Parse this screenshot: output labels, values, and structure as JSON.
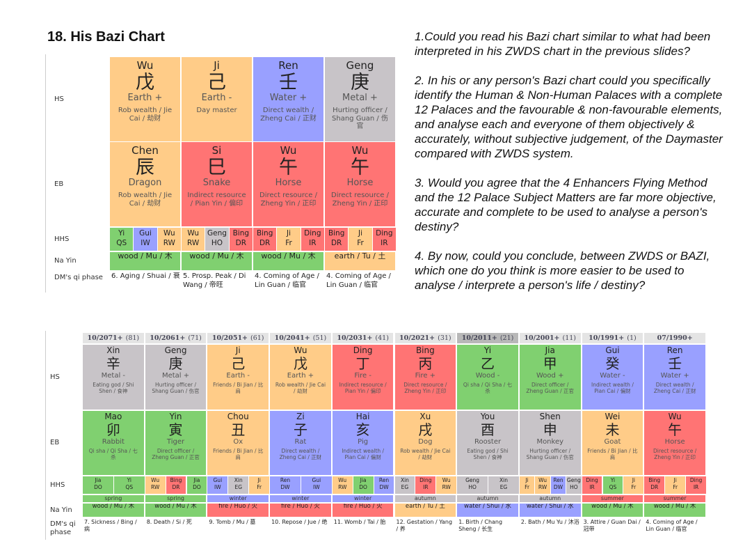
{
  "title": "18. His Bazi Chart",
  "questions": [
    "1.Could you read his Bazi chart similar to what had been interpreted in his ZWDS chart in the previous slides?",
    "2. In his or any person's Bazi chart could you specifically identify the Human & Non-Human Palaces with a complete 12 Palaces and the favourable & non-favourable elements, and analyse each and everyone of them objectively & accurately, without subjective judgement, of the Daymaster compared with ZWDS system.",
    "3. Would you agree that the 4 Enhancers Flying Method and the 12 Palace Subject Matters are far more objective, accurate and complete to be used to analyse a person's destiny?",
    "4. By now, could you conclude, between ZWDS or BAZI, which one do you think is more easier to be used to analyse / interprete a person's life / destiny?"
  ],
  "natal_chart": {
    "row_labels": [
      "HS",
      "EB",
      "HHS",
      "Na Yin",
      "DM's qi phase"
    ],
    "columns": [
      {
        "hs": {
          "pinyin": "Wu",
          "char": "戊",
          "element": "Earth +",
          "god": "Rob wealth / Jie Cai / 劫财",
          "color": "#ffcc88"
        },
        "eb": {
          "pinyin": "Chen",
          "char": "辰",
          "animal": "Dragon",
          "god": "Rob wealth / Jie Cai / 劫财",
          "color": "#ffcc88"
        },
        "hhs": [
          {
            "stem": "Yi",
            "god": "QS",
            "color": "#80d070"
          },
          {
            "stem": "Gui",
            "god": "IW",
            "color": "#99a0ff"
          },
          {
            "stem": "Wu",
            "god": "RW",
            "color": "#ffcc88"
          }
        ],
        "nayin": {
          "text": "wood / Mu / 木",
          "color": "#80d070"
        },
        "phase": "6. Aging / Shuai / 衰"
      },
      {
        "hs": {
          "pinyin": "Ji",
          "char": "己",
          "element": "Earth -",
          "god": "Day master",
          "color": "#ffcc88"
        },
        "eb": {
          "pinyin": "Si",
          "char": "巳",
          "animal": "Snake",
          "god": "Indirect resource / Pian Yin / 偏印",
          "color": "#ff7474"
        },
        "hhs": [
          {
            "stem": "Wu",
            "god": "RW",
            "color": "#ffcc88"
          },
          {
            "stem": "Geng",
            "god": "HO",
            "color": "#c8c4c8"
          },
          {
            "stem": "Bing",
            "god": "DR",
            "color": "#ff7474"
          }
        ],
        "nayin": {
          "text": "wood / Mu / 木",
          "color": "#80d070"
        },
        "phase": "5. Prosp. Peak / Di Wang / 帝旺"
      },
      {
        "hs": {
          "pinyin": "Ren",
          "char": "壬",
          "element": "Water +",
          "god": "Direct wealth / Zheng Cai / 正财",
          "color": "#99a0ff"
        },
        "eb": {
          "pinyin": "Wu",
          "char": "午",
          "animal": "Horse",
          "god": "Direct resource / Zheng Yin / 正印",
          "color": "#ff7474"
        },
        "hhs": [
          {
            "stem": "Bing",
            "god": "DR",
            "color": "#ff7474"
          },
          {
            "stem": "Ji",
            "god": "Fr",
            "color": "#ffcc88"
          },
          {
            "stem": "Ding",
            "god": "IR",
            "color": "#ff7474"
          }
        ],
        "nayin": {
          "text": "wood / Mu / 木",
          "color": "#80d070"
        },
        "phase": "4. Coming of Age / Lin Guan / 临官"
      },
      {
        "hs": {
          "pinyin": "Geng",
          "char": "庚",
          "element": "Metal +",
          "god": "Hurting officer / Shang Guan / 伤官",
          "color": "#c8c4c8"
        },
        "eb": {
          "pinyin": "Wu",
          "char": "午",
          "animal": "Horse",
          "god": "Direct resource / Zheng Yin / 正印",
          "color": "#ff7474"
        },
        "hhs": [
          {
            "stem": "Bing",
            "god": "DR",
            "color": "#ff7474"
          },
          {
            "stem": "Ji",
            "god": "Fr",
            "color": "#ffcc88"
          },
          {
            "stem": "Ding",
            "god": "IR",
            "color": "#ff7474"
          }
        ],
        "nayin": {
          "text": "earth / Tu / 土",
          "color": "#ffcc88"
        },
        "phase": "4. Coming of Age / Lin Guan / 临官"
      }
    ]
  },
  "luck_pillars": {
    "row_labels": [
      "HS",
      "EB",
      "HHS",
      "Na Yin",
      "DM's qi phase"
    ],
    "columns": [
      {
        "period": "10/2071+",
        "age": "(81)",
        "header_color": "#e4e4e4",
        "hs": {
          "pinyin": "Xin",
          "char": "辛",
          "element": "Metal -",
          "god": "Eating god / Shi Shen / 食神",
          "color": "#c8c4c8"
        },
        "eb": {
          "pinyin": "Mao",
          "char": "卯",
          "animal": "Rabbit",
          "god": "Qi sha / Qi Sha / 七杀",
          "color": "#80d070"
        },
        "hhs": [
          {
            "stem": "Jia",
            "god": "DO",
            "color": "#80d070"
          },
          {
            "stem": "Yi",
            "god": "QS",
            "color": "#80d070"
          }
        ],
        "season": {
          "text": "spring",
          "color": "#80d070"
        },
        "nayin": {
          "text": "wood / Mu / 木",
          "color": "#80d070"
        },
        "phase": "7. Sickness / Bing / 病"
      },
      {
        "period": "10/2061+",
        "age": "(71)",
        "header_color": "#e4e4e4",
        "hs": {
          "pinyin": "Geng",
          "char": "庚",
          "element": "Metal +",
          "god": "Hurting officer / Shang Guan / 伤官",
          "color": "#c8c4c8"
        },
        "eb": {
          "pinyin": "Yin",
          "char": "寅",
          "animal": "Tiger",
          "god": "Direct officer / Zheng Guan / 正官",
          "color": "#80d070"
        },
        "hhs": [
          {
            "stem": "Wu",
            "god": "RW",
            "color": "#ffcc88"
          },
          {
            "stem": "Bing",
            "god": "DR",
            "color": "#ff7474"
          },
          {
            "stem": "Jia",
            "god": "DO",
            "color": "#80d070"
          }
        ],
        "season": {
          "text": "spring",
          "color": "#80d070"
        },
        "nayin": {
          "text": "wood / Mu / 木",
          "color": "#80d070"
        },
        "phase": "8. Death / Si / 死"
      },
      {
        "period": "10/2051+",
        "age": "(61)",
        "header_color": "#e4e4e4",
        "hs": {
          "pinyin": "Ji",
          "char": "己",
          "element": "Earth -",
          "god": "Friends / Bi Jian / 比肩",
          "color": "#ffcc88"
        },
        "eb": {
          "pinyin": "Chou",
          "char": "丑",
          "animal": "Ox",
          "god": "Friends / Bi Jian / 比肩",
          "color": "#ffcc88"
        },
        "hhs": [
          {
            "stem": "Gui",
            "god": "IW",
            "color": "#99a0ff"
          },
          {
            "stem": "Xin",
            "god": "EG",
            "color": "#c8c4c8"
          },
          {
            "stem": "Ji",
            "god": "Fr",
            "color": "#ffcc88"
          }
        ],
        "season": {
          "text": "winter",
          "color": "#99a0ff"
        },
        "nayin": {
          "text": "fire / Huo / 火",
          "color": "#ff7474"
        },
        "phase": "9. Tomb / Mu / 墓"
      },
      {
        "period": "10/2041+",
        "age": "(51)",
        "header_color": "#e4e4e4",
        "hs": {
          "pinyin": "Wu",
          "char": "戊",
          "element": "Earth +",
          "god": "Rob wealth / Jie Cai / 劫财",
          "color": "#ffcc88"
        },
        "eb": {
          "pinyin": "Zi",
          "char": "子",
          "animal": "Rat",
          "god": "Direct wealth / Zheng Cai / 正财",
          "color": "#99a0ff"
        },
        "hhs": [
          {
            "stem": "Ren",
            "god": "DW",
            "color": "#99a0ff"
          },
          {
            "stem": "Gui",
            "god": "IW",
            "color": "#99a0ff"
          }
        ],
        "season": {
          "text": "winter",
          "color": "#99a0ff"
        },
        "nayin": {
          "text": "fire / Huo / 火",
          "color": "#ff7474"
        },
        "phase": "10. Repose / Jue / 绝"
      },
      {
        "period": "10/2031+",
        "age": "(41)",
        "header_color": "#e4e4e4",
        "hs": {
          "pinyin": "Ding",
          "char": "丁",
          "element": "Fire -",
          "god": "Indirect resource / Pian Yin / 偏印",
          "color": "#ff7474"
        },
        "eb": {
          "pinyin": "Hai",
          "char": "亥",
          "animal": "Pig",
          "god": "Indirect wealth / Pian Cai / 偏财",
          "color": "#99a0ff"
        },
        "hhs": [
          {
            "stem": "Wu",
            "god": "RW",
            "color": "#ffcc88"
          },
          {
            "stem": "Jia",
            "god": "DO",
            "color": "#80d070"
          },
          {
            "stem": "Ren",
            "god": "DW",
            "color": "#99a0ff"
          }
        ],
        "season": {
          "text": "winter",
          "color": "#99a0ff"
        },
        "nayin": {
          "text": "fire / Huo / 火",
          "color": "#ff7474"
        },
        "phase": "11. Womb / Tai / 胎"
      },
      {
        "period": "10/2021+",
        "age": "(31)",
        "header_color": "#e4e4e4",
        "hs": {
          "pinyin": "Bing",
          "char": "丙",
          "element": "Fire +",
          "god": "Direct resource / Zheng Yin / 正印",
          "color": "#ff7474"
        },
        "eb": {
          "pinyin": "Xu",
          "char": "戌",
          "animal": "Dog",
          "god": "Rob wealth / Jie Cai / 劫财",
          "color": "#ffcc88"
        },
        "hhs": [
          {
            "stem": "Xin",
            "god": "EG",
            "color": "#c8c4c8"
          },
          {
            "stem": "Ding",
            "god": "IR",
            "color": "#ff7474"
          },
          {
            "stem": "Wu",
            "god": "RW",
            "color": "#ffcc88"
          }
        ],
        "season": {
          "text": "autumn",
          "color": "#c8c4c8"
        },
        "nayin": {
          "text": "earth / Tu / 土",
          "color": "#ffcc88"
        },
        "phase": "12. Gestation / Yang / 养"
      },
      {
        "period": "10/2011+",
        "age": "(21)",
        "header_color": "#b8b8b8",
        "hs": {
          "pinyin": "Yi",
          "char": "乙",
          "element": "Wood -",
          "god": "Qi sha / Qi Sha / 七杀",
          "color": "#80d070"
        },
        "eb": {
          "pinyin": "You",
          "char": "酉",
          "animal": "Rooster",
          "god": "Eating god / Shi Shen / 食神",
          "color": "#c8c4c8"
        },
        "hhs": [
          {
            "stem": "Geng",
            "god": "HO",
            "color": "#c8c4c8"
          },
          {
            "stem": "Xin",
            "god": "EG",
            "color": "#c8c4c8"
          }
        ],
        "season": {
          "text": "autumn",
          "color": "#c8c4c8"
        },
        "nayin": {
          "text": "water / Shui / 水",
          "color": "#99a0ff"
        },
        "phase": "1. Birth / Chang Sheng / 长生"
      },
      {
        "period": "10/2001+",
        "age": "(11)",
        "header_color": "#e4e4e4",
        "hs": {
          "pinyin": "Jia",
          "char": "甲",
          "element": "Wood +",
          "god": "Direct officer / Zheng Guan / 正官",
          "color": "#80d070"
        },
        "eb": {
          "pinyin": "Shen",
          "char": "申",
          "animal": "Monkey",
          "god": "Hurting officer / Shang Guan / 伤官",
          "color": "#c8c4c8"
        },
        "hhs": [
          {
            "stem": "Ji",
            "god": "Fr",
            "color": "#ffcc88"
          },
          {
            "stem": "Wu",
            "god": "RW",
            "color": "#ffcc88"
          },
          {
            "stem": "Ren",
            "god": "DW",
            "color": "#99a0ff"
          },
          {
            "stem": "Geng",
            "god": "HO",
            "color": "#c8c4c8"
          }
        ],
        "season": {
          "text": "autumn",
          "color": "#c8c4c8"
        },
        "nayin": {
          "text": "water / Shui / 水",
          "color": "#99a0ff"
        },
        "phase": "2. Bath / Mu Yu / 沐浴"
      },
      {
        "period": "10/1991+",
        "age": "(1)",
        "header_color": "#e4e4e4",
        "hs": {
          "pinyin": "Gui",
          "char": "癸",
          "element": "Water -",
          "god": "Indirect wealth / Pian Cai / 偏财",
          "color": "#99a0ff"
        },
        "eb": {
          "pinyin": "Wei",
          "char": "未",
          "animal": "Goat",
          "god": "Friends / Bi Jian / 比肩",
          "color": "#ffcc88"
        },
        "hhs": [
          {
            "stem": "Ding",
            "god": "IR",
            "color": "#ff7474"
          },
          {
            "stem": "Yi",
            "god": "QS",
            "color": "#80d070"
          },
          {
            "stem": "Ji",
            "god": "Fr",
            "color": "#ffcc88"
          }
        ],
        "season": {
          "text": "summer",
          "color": "#ff7474"
        },
        "nayin": {
          "text": "wood / Mu / 木",
          "color": "#80d070"
        },
        "phase": "3. Attire / Guan Dai / 冠带"
      },
      {
        "period": "07/1990+",
        "header_color": "#e4e4e4",
        "hs": {
          "pinyin": "Ren",
          "char": "壬",
          "element": "Water +",
          "god": "Direct wealth / Zheng Cai / 正财",
          "color": "#99a0ff"
        },
        "eb": {
          "pinyin": "Wu",
          "char": "午",
          "animal": "Horse",
          "god": "Direct resource / Zheng Yin / 正印",
          "color": "#ff7474"
        },
        "hhs": [
          {
            "stem": "Bing",
            "god": "DR",
            "color": "#ff7474"
          },
          {
            "stem": "Ji",
            "god": "Fr",
            "color": "#ffcc88"
          },
          {
            "stem": "Ding",
            "god": "IR",
            "color": "#ff7474"
          }
        ],
        "season": {
          "text": "summer",
          "color": "#ff7474"
        },
        "nayin": {
          "text": "wood / Mu / 木",
          "color": "#80d070"
        },
        "phase": "4. Coming of Age / Lin Guan / 临官"
      }
    ]
  }
}
